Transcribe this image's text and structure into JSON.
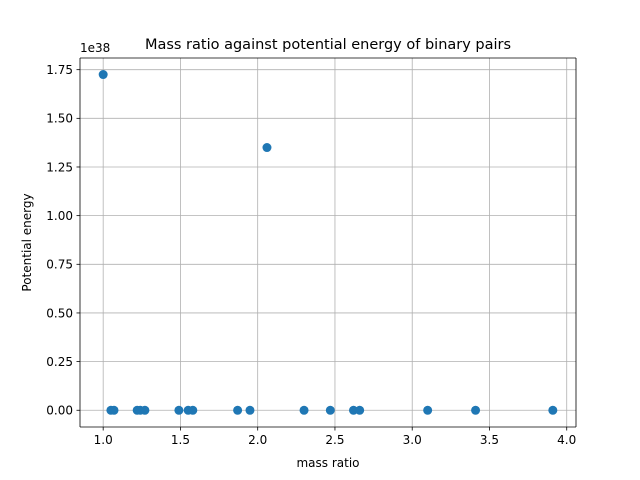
{
  "chart_data": {
    "type": "scatter",
    "title": "Mass ratio against potential energy of binary pairs",
    "xlabel": "mass ratio",
    "ylabel": "Potential energy",
    "offset_text": "1e38",
    "xlim": [
      0.85,
      4.06
    ],
    "ylim": [
      -0.086,
      1.81
    ],
    "xticks": [
      1.0,
      1.5,
      2.0,
      2.5,
      3.0,
      3.5,
      4.0
    ],
    "xtick_labels": [
      "1.0",
      "1.5",
      "2.0",
      "2.5",
      "3.0",
      "3.5",
      "4.0"
    ],
    "yticks": [
      0.0,
      0.25,
      0.5,
      0.75,
      1.0,
      1.25,
      1.5,
      1.75
    ],
    "ytick_labels": [
      "0.00",
      "0.25",
      "0.50",
      "0.75",
      "1.00",
      "1.25",
      "1.50",
      "1.75"
    ],
    "grid": true,
    "marker_color": "#1f77b4",
    "points": [
      {
        "x": 1.0,
        "y": 1.725
      },
      {
        "x": 2.06,
        "y": 1.35
      },
      {
        "x": 1.05,
        "y": 0.0
      },
      {
        "x": 1.07,
        "y": 0.0
      },
      {
        "x": 1.22,
        "y": 0.0
      },
      {
        "x": 1.24,
        "y": 0.0
      },
      {
        "x": 1.27,
        "y": 0.0
      },
      {
        "x": 1.49,
        "y": 0.0
      },
      {
        "x": 1.55,
        "y": 0.0
      },
      {
        "x": 1.58,
        "y": 0.0
      },
      {
        "x": 1.87,
        "y": 0.0
      },
      {
        "x": 1.95,
        "y": 0.0
      },
      {
        "x": 2.3,
        "y": 0.0
      },
      {
        "x": 2.47,
        "y": 0.0
      },
      {
        "x": 2.62,
        "y": 0.0
      },
      {
        "x": 2.66,
        "y": 0.0
      },
      {
        "x": 3.1,
        "y": 0.0
      },
      {
        "x": 3.41,
        "y": 0.0
      },
      {
        "x": 3.91,
        "y": 0.0
      }
    ]
  }
}
